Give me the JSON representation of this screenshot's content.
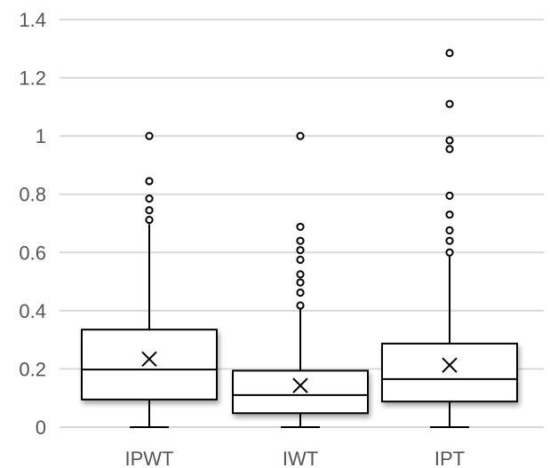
{
  "chart_data": {
    "type": "box",
    "title": "",
    "xlabel": "",
    "ylabel": "",
    "ylim": [
      0,
      1.4
    ],
    "yticks": [
      0,
      0.2,
      0.4,
      0.6,
      0.8,
      1,
      1.2,
      1.4
    ],
    "ytick_labels": [
      "0",
      "0.2",
      "0.4",
      "0.6",
      "0.8",
      "1",
      "1.2",
      "1.4"
    ],
    "grid": true,
    "legend": "none",
    "categories": [
      "IPWT",
      "IWT",
      "IPT"
    ],
    "boxes": [
      {
        "category": "IPWT",
        "whisker_low": 0,
        "q1": 0.095,
        "median": 0.198,
        "q3": 0.335,
        "whisker_high": 0.697,
        "mean": 0.234,
        "outliers": [
          0.712,
          0.745,
          0.785,
          0.845,
          1.0
        ]
      },
      {
        "category": "IWT",
        "whisker_low": 0,
        "q1": 0.048,
        "median": 0.11,
        "q3": 0.194,
        "whisker_high": 0.408,
        "mean": 0.143,
        "outliers": [
          0.418,
          0.462,
          0.497,
          0.525,
          0.575,
          0.608,
          0.64,
          0.688,
          1.0
        ]
      },
      {
        "category": "IPT",
        "whisker_low": 0,
        "q1": 0.088,
        "median": 0.165,
        "q3": 0.287,
        "whisker_high": 0.586,
        "mean": 0.213,
        "outliers": [
          0.6,
          0.64,
          0.676,
          0.73,
          0.795,
          0.955,
          0.985,
          1.11,
          1.285
        ]
      }
    ]
  }
}
